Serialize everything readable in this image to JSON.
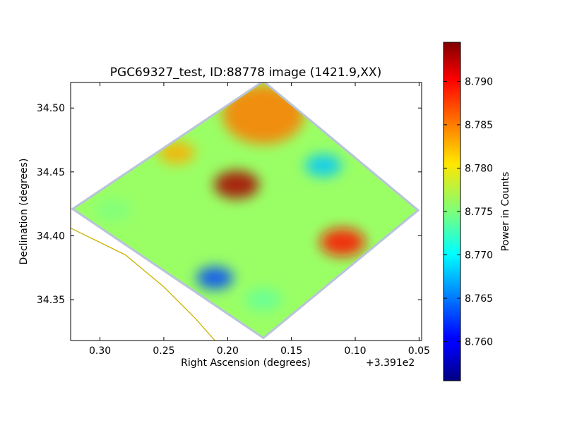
{
  "chart_data": {
    "type": "heatmap",
    "title": "PGC69327_test, ID:88778 image (1421.9,XX)",
    "xlabel": "Right Ascension (degrees)",
    "ylabel": "Declination (degrees)",
    "x_offset_label": "+3.391e2",
    "xlim": [
      0.323,
      0.048
    ],
    "ylim": [
      34.318,
      34.52
    ],
    "x_ticks": [
      0.3,
      0.25,
      0.2,
      0.15,
      0.1,
      0.05
    ],
    "x_tick_labels": [
      "0.30",
      "0.25",
      "0.20",
      "0.15",
      "0.10",
      "0.05"
    ],
    "y_ticks": [
      34.35,
      34.4,
      34.45,
      34.5
    ],
    "y_tick_labels": [
      "34.35",
      "34.40",
      "34.45",
      "34.50"
    ],
    "colorbar": {
      "label": "Power in Counts",
      "range": [
        8.7555,
        8.7945
      ],
      "ticks": [
        8.76,
        8.765,
        8.77,
        8.775,
        8.78,
        8.785,
        8.79
      ],
      "tick_labels": [
        "8.760",
        "8.765",
        "8.770",
        "8.775",
        "8.780",
        "8.785",
        "8.790"
      ],
      "colormap": "jet"
    },
    "footprint_corners_ra_dec": [
      [
        0.32,
        34.421
      ],
      [
        0.172,
        34.52
      ],
      [
        0.052,
        34.42
      ],
      [
        0.172,
        34.321
      ]
    ],
    "background_value": 8.776,
    "features": [
      {
        "ra": 0.172,
        "dec": 34.495,
        "value": 8.785
      },
      {
        "ra": 0.193,
        "dec": 34.44,
        "value": 8.793
      },
      {
        "ra": 0.11,
        "dec": 34.395,
        "value": 8.789
      },
      {
        "ra": 0.21,
        "dec": 34.367,
        "value": 8.763
      },
      {
        "ra": 0.125,
        "dec": 34.455,
        "value": 8.768
      },
      {
        "ra": 0.24,
        "dec": 34.465,
        "value": 8.783
      },
      {
        "ra": 0.172,
        "dec": 34.35,
        "value": 8.774
      },
      {
        "ra": 0.29,
        "dec": 34.42,
        "value": 8.775
      }
    ],
    "arc_color": "#c8b400",
    "arc_points_ra_dec": [
      [
        0.323,
        34.406
      ],
      [
        0.28,
        34.385
      ],
      [
        0.25,
        34.36
      ],
      [
        0.225,
        34.335
      ],
      [
        0.21,
        34.318
      ]
    ]
  }
}
